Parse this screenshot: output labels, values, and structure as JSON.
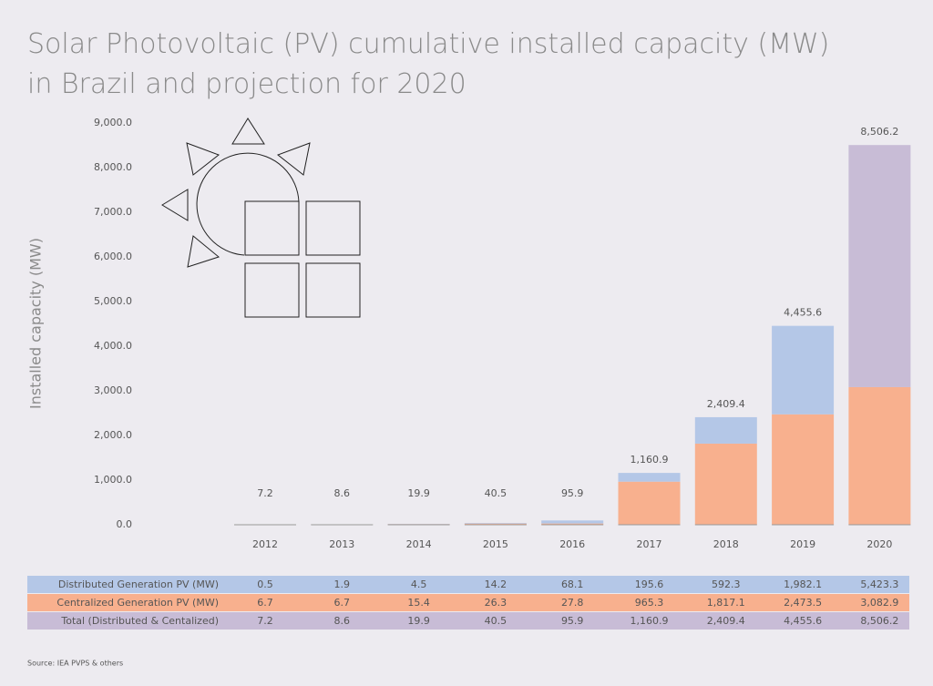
{
  "chart_data": {
    "type": "bar",
    "title": "Solar Photovoltaic (PV) cumulative installed capacity (MW)",
    "subtitle": "in Brazil and projection for 2020",
    "y_label": "Installed capacity (MW)",
    "source": "Source: IEA PVPS & others",
    "categories": [
      "2012",
      "2013",
      "2014",
      "2015",
      "2016",
      "2017",
      "2018",
      "2019",
      "2020"
    ],
    "ylim": [
      0,
      9000
    ],
    "yticks": [
      {
        "value": 0,
        "label": "0.0"
      },
      {
        "value": 1000,
        "label": "1,000.0"
      },
      {
        "value": 2000,
        "label": "2,000.0"
      },
      {
        "value": 3000,
        "label": "3,000.0"
      },
      {
        "value": 4000,
        "label": "4,000.0"
      },
      {
        "value": 5000,
        "label": "5,000.0"
      },
      {
        "value": 6000,
        "label": "6,000.0"
      },
      {
        "value": 7000,
        "label": "7,000.0"
      },
      {
        "value": 8000,
        "label": "8,000.0"
      },
      {
        "value": 9000,
        "label": "9,000.0"
      }
    ],
    "series": [
      {
        "name": "Distributed Generation PV (MW)",
        "color": "#b4c7e7",
        "stacked": true,
        "colors": [
          "#b4c7e7",
          "#b4c7e7",
          "#b4c7e7",
          "#b4c7e7",
          "#b4c7e7",
          "#b4c7e7",
          "#b4c7e7",
          "#b4c7e7",
          "#c8bcd6"
        ],
        "values": [
          0.5,
          1.9,
          4.5,
          14.2,
          68.1,
          195.6,
          592.3,
          1982.1,
          5423.3
        ],
        "value_labels": [
          "0.5",
          "1.9",
          "4.5",
          "14.2",
          "68.1",
          "195.6",
          "592.3",
          "1,982.1",
          "5,423.3"
        ]
      },
      {
        "name": "Centralized Generation PV (MW)",
        "color": "#f8b08e",
        "stacked": true,
        "values": [
          6.7,
          6.7,
          15.4,
          26.3,
          27.8,
          965.3,
          1817.1,
          2473.5,
          3082.9
        ],
        "value_labels": [
          "6.7",
          "6.7",
          "15.4",
          "26.3",
          "27.8",
          "965.3",
          "1,817.1",
          "2,473.5",
          "3,082.9"
        ]
      },
      {
        "name": "Total (Distributed & Centalized)",
        "color": "#c8bcd6",
        "stacked": false,
        "values": [
          7.2,
          8.6,
          19.9,
          40.5,
          95.9,
          1160.9,
          2409.4,
          4455.6,
          8506.2
        ],
        "value_labels": [
          "7.2",
          "8.6",
          "19.9",
          "40.5",
          "95.9",
          "1,160.9",
          "2,409.4",
          "4,455.6",
          "8,506.2"
        ]
      }
    ]
  }
}
